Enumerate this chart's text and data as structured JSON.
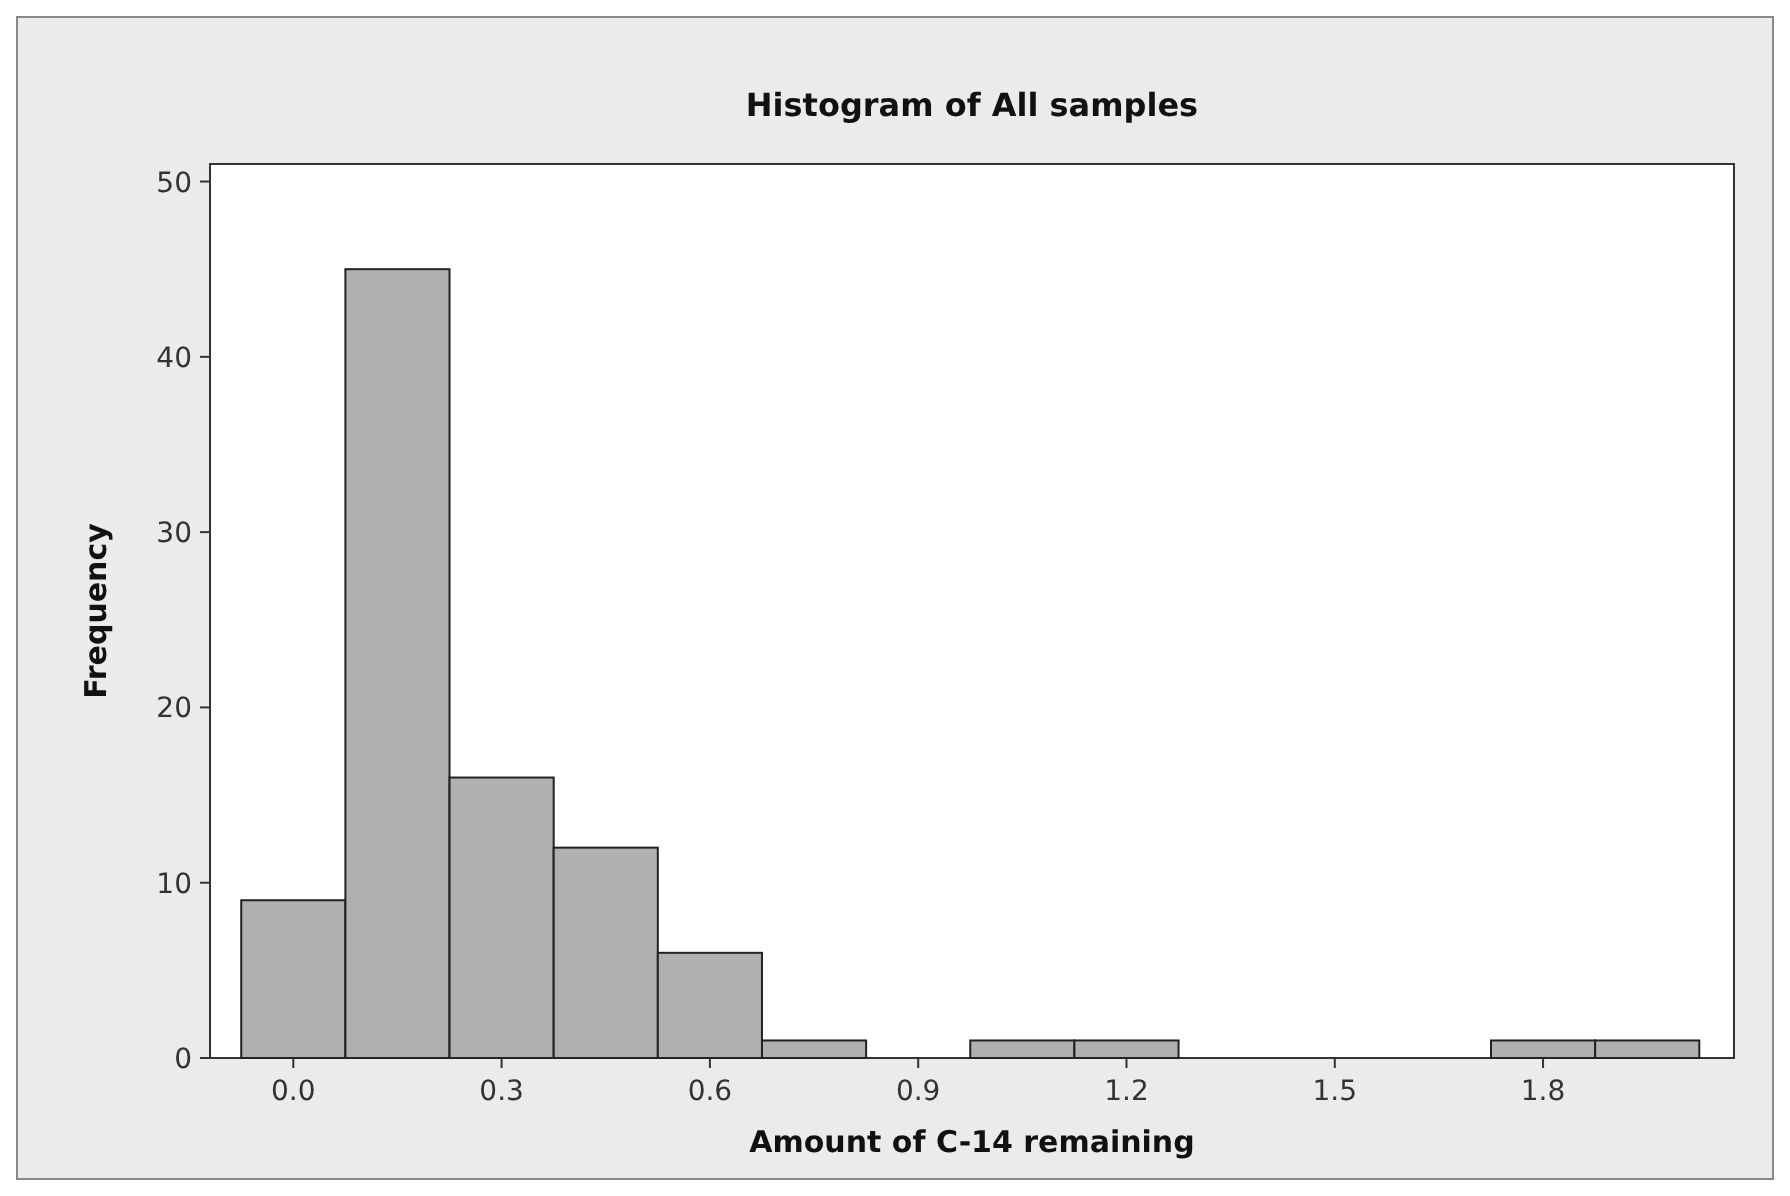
{
  "chart_data": {
    "type": "histogram",
    "title": "Histogram of All samples",
    "xlabel": "Amount of C-14 remaining",
    "ylabel": "Frequency",
    "bins": [
      -0.075,
      0.075,
      0.225,
      0.375,
      0.525,
      0.675,
      0.825,
      0.975,
      1.125,
      1.275,
      1.425,
      1.575,
      1.725,
      1.875,
      2.025
    ],
    "values": [
      9,
      45,
      16,
      12,
      6,
      1,
      0,
      1,
      1,
      0,
      0,
      0,
      1,
      1
    ],
    "color": "#b0b0b0",
    "xlim": [
      -0.12,
      2.075
    ],
    "xticks": [
      {
        "value": 0,
        "label": "0.0"
      },
      0.3,
      0.6,
      0.9,
      1.2,
      1.5,
      1.8
    ],
    "ylim": [
      0,
      51
    ],
    "yticks": [
      0,
      10,
      20,
      30,
      40,
      50
    ],
    "grid": false
  }
}
